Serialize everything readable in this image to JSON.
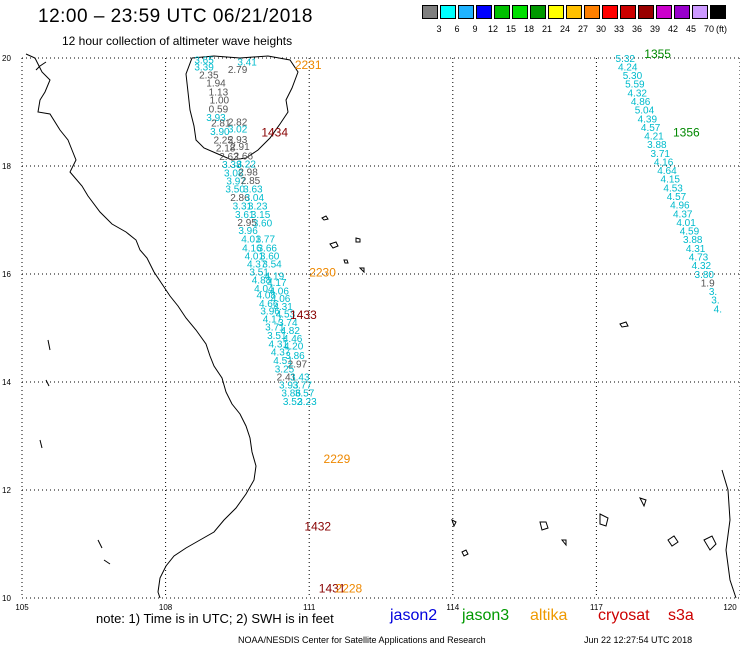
{
  "header": {
    "title": "12:00 – 23:59 UTC 06/21/2018",
    "subtitle": "12 hour collection of altimeter wave heights"
  },
  "legend": {
    "colors": [
      "#7f7f7f",
      "#00ffff",
      "#1fb3ff",
      "#0000ff",
      "#00c000",
      "#00e000",
      "#009900",
      "#ffff00",
      "#ffc000",
      "#ff8000",
      "#ff0000",
      "#cc0000",
      "#990000",
      "#cc00cc",
      "#9900cc",
      "#cc99ff",
      "#000000"
    ],
    "labels": [
      "3",
      "6",
      "9",
      "12",
      "15",
      "18",
      "21",
      "24",
      "27",
      "30",
      "33",
      "36",
      "39",
      "42",
      "45",
      "70"
    ],
    "unit": "(ft)"
  },
  "map": {
    "lat_labels": [
      "20",
      "18",
      "16",
      "14",
      "12",
      "10"
    ],
    "lon_labels": [
      "105",
      "108",
      "111",
      "114",
      "117",
      "120"
    ],
    "lat_values": [
      20,
      18,
      16,
      14,
      12,
      10
    ],
    "lon_values": [
      105,
      108,
      111,
      114,
      117,
      120
    ],
    "track_colors": {
      "jason3": "#008800",
      "altika": "#ee8800",
      "cryosat": "#880000",
      "cyan": "#00bbcc",
      "gray": "#555555"
    },
    "time_labels": [
      {
        "text": "2231",
        "lon": 110.7,
        "lat": 19.8,
        "sat": "altika"
      },
      {
        "text": "1434",
        "lon": 110.0,
        "lat": 18.55,
        "sat": "cryosat"
      },
      {
        "text": "2230",
        "lon": 111.0,
        "lat": 15.95,
        "sat": "altika"
      },
      {
        "text": "1433",
        "lon": 110.6,
        "lat": 15.17,
        "sat": "cryosat"
      },
      {
        "text": "2229",
        "lon": 111.3,
        "lat": 12.5,
        "sat": "altika"
      },
      {
        "text": "1432",
        "lon": 110.9,
        "lat": 11.25,
        "sat": "cryosat"
      },
      {
        "text": "1431",
        "lon": 111.2,
        "lat": 10.1,
        "sat": "cryosat"
      },
      {
        "text": "2228",
        "lon": 111.55,
        "lat": 10.1,
        "sat": "altika"
      },
      {
        "text": "1355",
        "lon": 118.0,
        "lat": 20.0,
        "sat": "jason3"
      },
      {
        "text": "1356",
        "lon": 118.6,
        "lat": 18.55,
        "sat": "jason3"
      }
    ],
    "track_values": [
      {
        "text": "3.65",
        "lon": 108.6,
        "lat": 19.9,
        "c": "cyan"
      },
      {
        "text": "3.41",
        "lon": 109.5,
        "lat": 19.86,
        "c": "cyan"
      },
      {
        "text": "3.39",
        "lon": 108.6,
        "lat": 19.77,
        "c": "cyan"
      },
      {
        "text": "2.79",
        "lon": 109.3,
        "lat": 19.72,
        "c": "gray"
      },
      {
        "text": "2.35",
        "lon": 108.7,
        "lat": 19.62,
        "c": "gray"
      },
      {
        "text": "1.94",
        "lon": 108.85,
        "lat": 19.47,
        "c": "gray"
      },
      {
        "text": "1.13",
        "lon": 108.9,
        "lat": 19.31,
        "c": "gray"
      },
      {
        "text": "1.00",
        "lon": 108.92,
        "lat": 19.16,
        "c": "gray"
      },
      {
        "text": "0.59",
        "lon": 108.9,
        "lat": 18.99,
        "c": "gray"
      },
      {
        "text": "3.93",
        "lon": 108.85,
        "lat": 18.83,
        "c": "cyan"
      },
      {
        "text": "2.81",
        "lon": 108.95,
        "lat": 18.73,
        "c": "gray"
      },
      {
        "text": "2.82",
        "lon": 109.3,
        "lat": 18.75,
        "c": "gray"
      },
      {
        "text": "3.90",
        "lon": 108.93,
        "lat": 18.57,
        "c": "cyan"
      },
      {
        "text": "3.02",
        "lon": 109.3,
        "lat": 18.62,
        "c": "cyan"
      },
      {
        "text": "2.25",
        "lon": 109.0,
        "lat": 18.42,
        "c": "gray"
      },
      {
        "text": "2.93",
        "lon": 109.3,
        "lat": 18.43,
        "c": "gray"
      },
      {
        "text": "2.18",
        "lon": 109.05,
        "lat": 18.27,
        "c": "gray"
      },
      {
        "text": "2.91",
        "lon": 109.35,
        "lat": 18.3,
        "c": "gray"
      },
      {
        "text": "2.63",
        "lon": 109.12,
        "lat": 18.11,
        "c": "gray"
      },
      {
        "text": "2.66",
        "lon": 109.42,
        "lat": 18.12,
        "c": "gray"
      },
      {
        "text": "3.38",
        "lon": 109.18,
        "lat": 17.96,
        "c": "cyan"
      },
      {
        "text": "3.22",
        "lon": 109.48,
        "lat": 17.97,
        "c": "cyan"
      },
      {
        "text": "3.08",
        "lon": 109.22,
        "lat": 17.81,
        "c": "cyan"
      },
      {
        "text": "2.98",
        "lon": 109.52,
        "lat": 17.82,
        "c": "gray"
      },
      {
        "text": "3.97",
        "lon": 109.27,
        "lat": 17.66,
        "c": "cyan"
      },
      {
        "text": "2.85",
        "lon": 109.57,
        "lat": 17.67,
        "c": "gray"
      },
      {
        "text": "3.50",
        "lon": 109.25,
        "lat": 17.51,
        "c": "cyan"
      },
      {
        "text": "3.63",
        "lon": 109.62,
        "lat": 17.51,
        "c": "cyan"
      },
      {
        "text": "2.86",
        "lon": 109.35,
        "lat": 17.35,
        "c": "gray"
      },
      {
        "text": "3.04",
        "lon": 109.65,
        "lat": 17.35,
        "c": "cyan"
      },
      {
        "text": "3.31",
        "lon": 109.4,
        "lat": 17.19,
        "c": "cyan"
      },
      {
        "text": "3.23",
        "lon": 109.72,
        "lat": 17.19,
        "c": "cyan"
      },
      {
        "text": "3.61",
        "lon": 109.45,
        "lat": 17.04,
        "c": "cyan"
      },
      {
        "text": "3.15",
        "lon": 109.78,
        "lat": 17.04,
        "c": "cyan"
      },
      {
        "text": "2.95",
        "lon": 109.5,
        "lat": 16.89,
        "c": "gray"
      },
      {
        "text": "3.60",
        "lon": 109.82,
        "lat": 16.88,
        "c": "cyan"
      },
      {
        "text": "3.96",
        "lon": 109.52,
        "lat": 16.74,
        "c": "cyan"
      },
      {
        "text": "3.77",
        "lon": 109.88,
        "lat": 16.58,
        "c": "cyan"
      },
      {
        "text": "4.01",
        "lon": 109.58,
        "lat": 16.58,
        "c": "cyan"
      },
      {
        "text": "4.16",
        "lon": 109.6,
        "lat": 16.42,
        "c": "cyan"
      },
      {
        "text": "3.66",
        "lon": 109.92,
        "lat": 16.42,
        "c": "cyan"
      },
      {
        "text": "4.01",
        "lon": 109.65,
        "lat": 16.27,
        "c": "cyan"
      },
      {
        "text": "3.60",
        "lon": 109.97,
        "lat": 16.27,
        "c": "cyan"
      },
      {
        "text": "4.37",
        "lon": 109.7,
        "lat": 16.12,
        "c": "cyan"
      },
      {
        "text": "3.54",
        "lon": 110.02,
        "lat": 16.12,
        "c": "cyan"
      },
      {
        "text": "3.51",
        "lon": 109.75,
        "lat": 15.97,
        "c": "cyan"
      },
      {
        "text": "4.19",
        "lon": 110.07,
        "lat": 15.9,
        "c": "cyan"
      },
      {
        "text": "4.88",
        "lon": 109.8,
        "lat": 15.82,
        "c": "cyan"
      },
      {
        "text": "4.17",
        "lon": 110.12,
        "lat": 15.78,
        "c": "cyan"
      },
      {
        "text": "4.04",
        "lon": 109.85,
        "lat": 15.67,
        "c": "cyan"
      },
      {
        "text": "4.06",
        "lon": 110.17,
        "lat": 15.62,
        "c": "cyan"
      },
      {
        "text": "4.08",
        "lon": 109.9,
        "lat": 15.55,
        "c": "cyan"
      },
      {
        "text": "4.06",
        "lon": 110.2,
        "lat": 15.48,
        "c": "cyan"
      },
      {
        "text": "4.66",
        "lon": 109.95,
        "lat": 15.39,
        "c": "cyan"
      },
      {
        "text": "4.31",
        "lon": 110.25,
        "lat": 15.33,
        "c": "cyan"
      },
      {
        "text": "3.96",
        "lon": 109.98,
        "lat": 15.25,
        "c": "cyan"
      },
      {
        "text": "4.53",
        "lon": 110.3,
        "lat": 15.19,
        "c": "cyan"
      },
      {
        "text": "4.17",
        "lon": 110.03,
        "lat": 15.1,
        "c": "cyan"
      },
      {
        "text": "3.74",
        "lon": 110.35,
        "lat": 15.04,
        "c": "cyan"
      },
      {
        "text": "3.71",
        "lon": 110.08,
        "lat": 14.95,
        "c": "cyan"
      },
      {
        "text": "4.82",
        "lon": 110.4,
        "lat": 14.89,
        "c": "cyan"
      },
      {
        "text": "3.51",
        "lon": 110.12,
        "lat": 14.8,
        "c": "cyan"
      },
      {
        "text": "4.46",
        "lon": 110.45,
        "lat": 14.74,
        "c": "cyan"
      },
      {
        "text": "4.31",
        "lon": 110.15,
        "lat": 14.64,
        "c": "cyan"
      },
      {
        "text": "4.20",
        "lon": 110.47,
        "lat": 14.6,
        "c": "cyan"
      },
      {
        "text": "4.37",
        "lon": 110.2,
        "lat": 14.49,
        "c": "cyan"
      },
      {
        "text": "3.86",
        "lon": 110.5,
        "lat": 14.43,
        "c": "cyan"
      },
      {
        "text": "4.51",
        "lon": 110.25,
        "lat": 14.33,
        "c": "cyan"
      },
      {
        "text": "2.97",
        "lon": 110.55,
        "lat": 14.27,
        "c": "gray"
      },
      {
        "text": "3.25",
        "lon": 110.28,
        "lat": 14.18,
        "c": "cyan"
      },
      {
        "text": "2.41",
        "lon": 110.32,
        "lat": 14.03,
        "c": "gray"
      },
      {
        "text": "3.43",
        "lon": 110.6,
        "lat": 14.03,
        "c": "cyan"
      },
      {
        "text": "3.93",
        "lon": 110.37,
        "lat": 13.88,
        "c": "cyan"
      },
      {
        "text": "3.77",
        "lon": 110.65,
        "lat": 13.88,
        "c": "cyan"
      },
      {
        "text": "3.86",
        "lon": 110.42,
        "lat": 13.73,
        "c": "cyan"
      },
      {
        "text": "3.57",
        "lon": 110.7,
        "lat": 13.73,
        "c": "cyan"
      },
      {
        "text": "3.52",
        "lon": 110.45,
        "lat": 13.57,
        "c": "cyan"
      },
      {
        "text": "3.23",
        "lon": 110.75,
        "lat": 13.57,
        "c": "cyan"
      },
      {
        "text": "5.32",
        "lon": 117.4,
        "lat": 19.93,
        "c": "cyan"
      },
      {
        "text": "4.24",
        "lon": 117.45,
        "lat": 19.77,
        "c": "cyan"
      },
      {
        "text": "5.30",
        "lon": 117.55,
        "lat": 19.61,
        "c": "cyan"
      },
      {
        "text": "5.59",
        "lon": 117.6,
        "lat": 19.45,
        "c": "cyan"
      },
      {
        "text": "4.32",
        "lon": 117.65,
        "lat": 19.29,
        "c": "cyan"
      },
      {
        "text": "4.86",
        "lon": 117.72,
        "lat": 19.13,
        "c": "cyan"
      },
      {
        "text": "5.04",
        "lon": 117.8,
        "lat": 18.97,
        "c": "cyan"
      },
      {
        "text": "4.39",
        "lon": 117.86,
        "lat": 18.81,
        "c": "cyan"
      },
      {
        "text": "4.57",
        "lon": 117.93,
        "lat": 18.65,
        "c": "cyan"
      },
      {
        "text": "4.21",
        "lon": 118.0,
        "lat": 18.49,
        "c": "cyan"
      },
      {
        "text": "3.88",
        "lon": 118.06,
        "lat": 18.33,
        "c": "cyan"
      },
      {
        "text": "3.71",
        "lon": 118.13,
        "lat": 18.17,
        "c": "cyan"
      },
      {
        "text": "4.16",
        "lon": 118.2,
        "lat": 18.01,
        "c": "cyan"
      },
      {
        "text": "4.64",
        "lon": 118.27,
        "lat": 17.85,
        "c": "cyan"
      },
      {
        "text": "4.15",
        "lon": 118.34,
        "lat": 17.69,
        "c": "cyan"
      },
      {
        "text": "4.53",
        "lon": 118.4,
        "lat": 17.53,
        "c": "cyan"
      },
      {
        "text": "4.57",
        "lon": 118.47,
        "lat": 17.37,
        "c": "cyan"
      },
      {
        "text": "4.96",
        "lon": 118.54,
        "lat": 17.21,
        "c": "cyan"
      },
      {
        "text": "4.37",
        "lon": 118.6,
        "lat": 17.05,
        "c": "cyan"
      },
      {
        "text": "4.01",
        "lon": 118.67,
        "lat": 16.89,
        "c": "cyan"
      },
      {
        "text": "4.59",
        "lon": 118.74,
        "lat": 16.73,
        "c": "cyan"
      },
      {
        "text": "3.88",
        "lon": 118.81,
        "lat": 16.57,
        "c": "cyan"
      },
      {
        "text": "4.31",
        "lon": 118.87,
        "lat": 16.41,
        "c": "cyan"
      },
      {
        "text": "4.73",
        "lon": 118.93,
        "lat": 16.25,
        "c": "cyan"
      },
      {
        "text": "4.32",
        "lon": 118.99,
        "lat": 16.09,
        "c": "cyan"
      },
      {
        "text": "3.80",
        "lon": 119.05,
        "lat": 15.93,
        "c": "cyan"
      },
      {
        "text": "1.9",
        "lon": 119.18,
        "lat": 15.77,
        "c": "gray"
      },
      {
        "text": "3.",
        "lon": 119.35,
        "lat": 15.61,
        "c": "cyan"
      },
      {
        "text": "3.",
        "lon": 119.4,
        "lat": 15.45,
        "c": "cyan"
      },
      {
        "text": "4.",
        "lon": 119.45,
        "lat": 15.29,
        "c": "cyan"
      }
    ]
  },
  "footer": {
    "note": "note: 1) Time is in UTC; 2) SWH is in feet",
    "satellites": [
      {
        "name": "jason2",
        "color": "#0000dd"
      },
      {
        "name": "jason3",
        "color": "#009900"
      },
      {
        "name": "altika",
        "color": "#ee9900"
      },
      {
        "name": "cryosat",
        "color": "#cc0000"
      },
      {
        "name": "s3a",
        "color": "#cc0000"
      }
    ],
    "credit": "NOAA/NESDIS Center for Satellite Applications and Research",
    "timestamp": "Jun 22 12:27:54 UTC 2018"
  }
}
